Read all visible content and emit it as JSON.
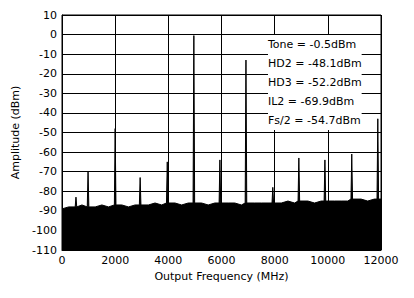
{
  "chart_data": {
    "type": "line",
    "x_label": "Output Frequency (MHz)",
    "y_label": "Amplitude (dBm)",
    "annotations": [
      "Tone = -0.5dBm",
      "HD2 = -48.1dBm",
      "HD3 = -52.2dBm",
      "IL2 = -69.9dBm",
      "Fs/2 = -54.7dBm"
    ],
    "x": [
      0,
      250,
      495,
      526,
      555,
      750,
      950,
      980,
      1010,
      1250,
      1500,
      1750,
      1970,
      2000,
      2030,
      2250,
      2500,
      2750,
      2910,
      2940,
      2970,
      3250,
      3500,
      3750,
      3930,
      3960,
      3990,
      4250,
      4500,
      4750,
      4930,
      4960,
      4990,
      5250,
      5500,
      5750,
      5910,
      5940,
      5970,
      6250,
      6500,
      6750,
      6890,
      6920,
      6950,
      7250,
      7500,
      7750,
      7900,
      7930,
      7960,
      8250,
      8500,
      8750,
      8880,
      8910,
      8940,
      9250,
      9500,
      9750,
      9860,
      9890,
      9920,
      10250,
      10500,
      10750,
      10870,
      10900,
      10930,
      11250,
      11500,
      11750,
      11850,
      11880,
      11910,
      12000
    ],
    "values": [
      -89,
      -88,
      -88,
      -83,
      -88,
      -87,
      -88,
      -70,
      -88,
      -88,
      -87,
      -88,
      -87,
      -48,
      -87,
      -87,
      -88,
      -87,
      -87,
      -73,
      -87,
      -87,
      -86,
      -87,
      -86,
      -65,
      -86,
      -86,
      -87,
      -86,
      -86,
      -0.5,
      -86,
      -86,
      -87,
      -86,
      -86,
      -64,
      -86,
      -86,
      -86,
      -87,
      -86,
      -13,
      -86,
      -86,
      -86,
      -86,
      -86,
      -78,
      -86,
      -86,
      -85,
      -86,
      -85,
      -63,
      -85,
      -85,
      -86,
      -85,
      -85,
      -64,
      -85,
      -85,
      -85,
      -85,
      -84,
      -61,
      -84,
      -84,
      -85,
      -84,
      -84,
      -43,
      -84,
      -84
    ],
    "color": "#000000",
    "xlim": [
      0,
      12000
    ],
    "xticks": [
      0,
      2000,
      4000,
      6000,
      8000,
      10000,
      12000
    ],
    "ylim": [
      -110,
      10
    ],
    "yticks": [
      -110,
      -100,
      -90,
      -80,
      -70,
      -60,
      -50,
      -40,
      -30,
      -20,
      -10,
      0,
      10
    ],
    "grid": true
  }
}
